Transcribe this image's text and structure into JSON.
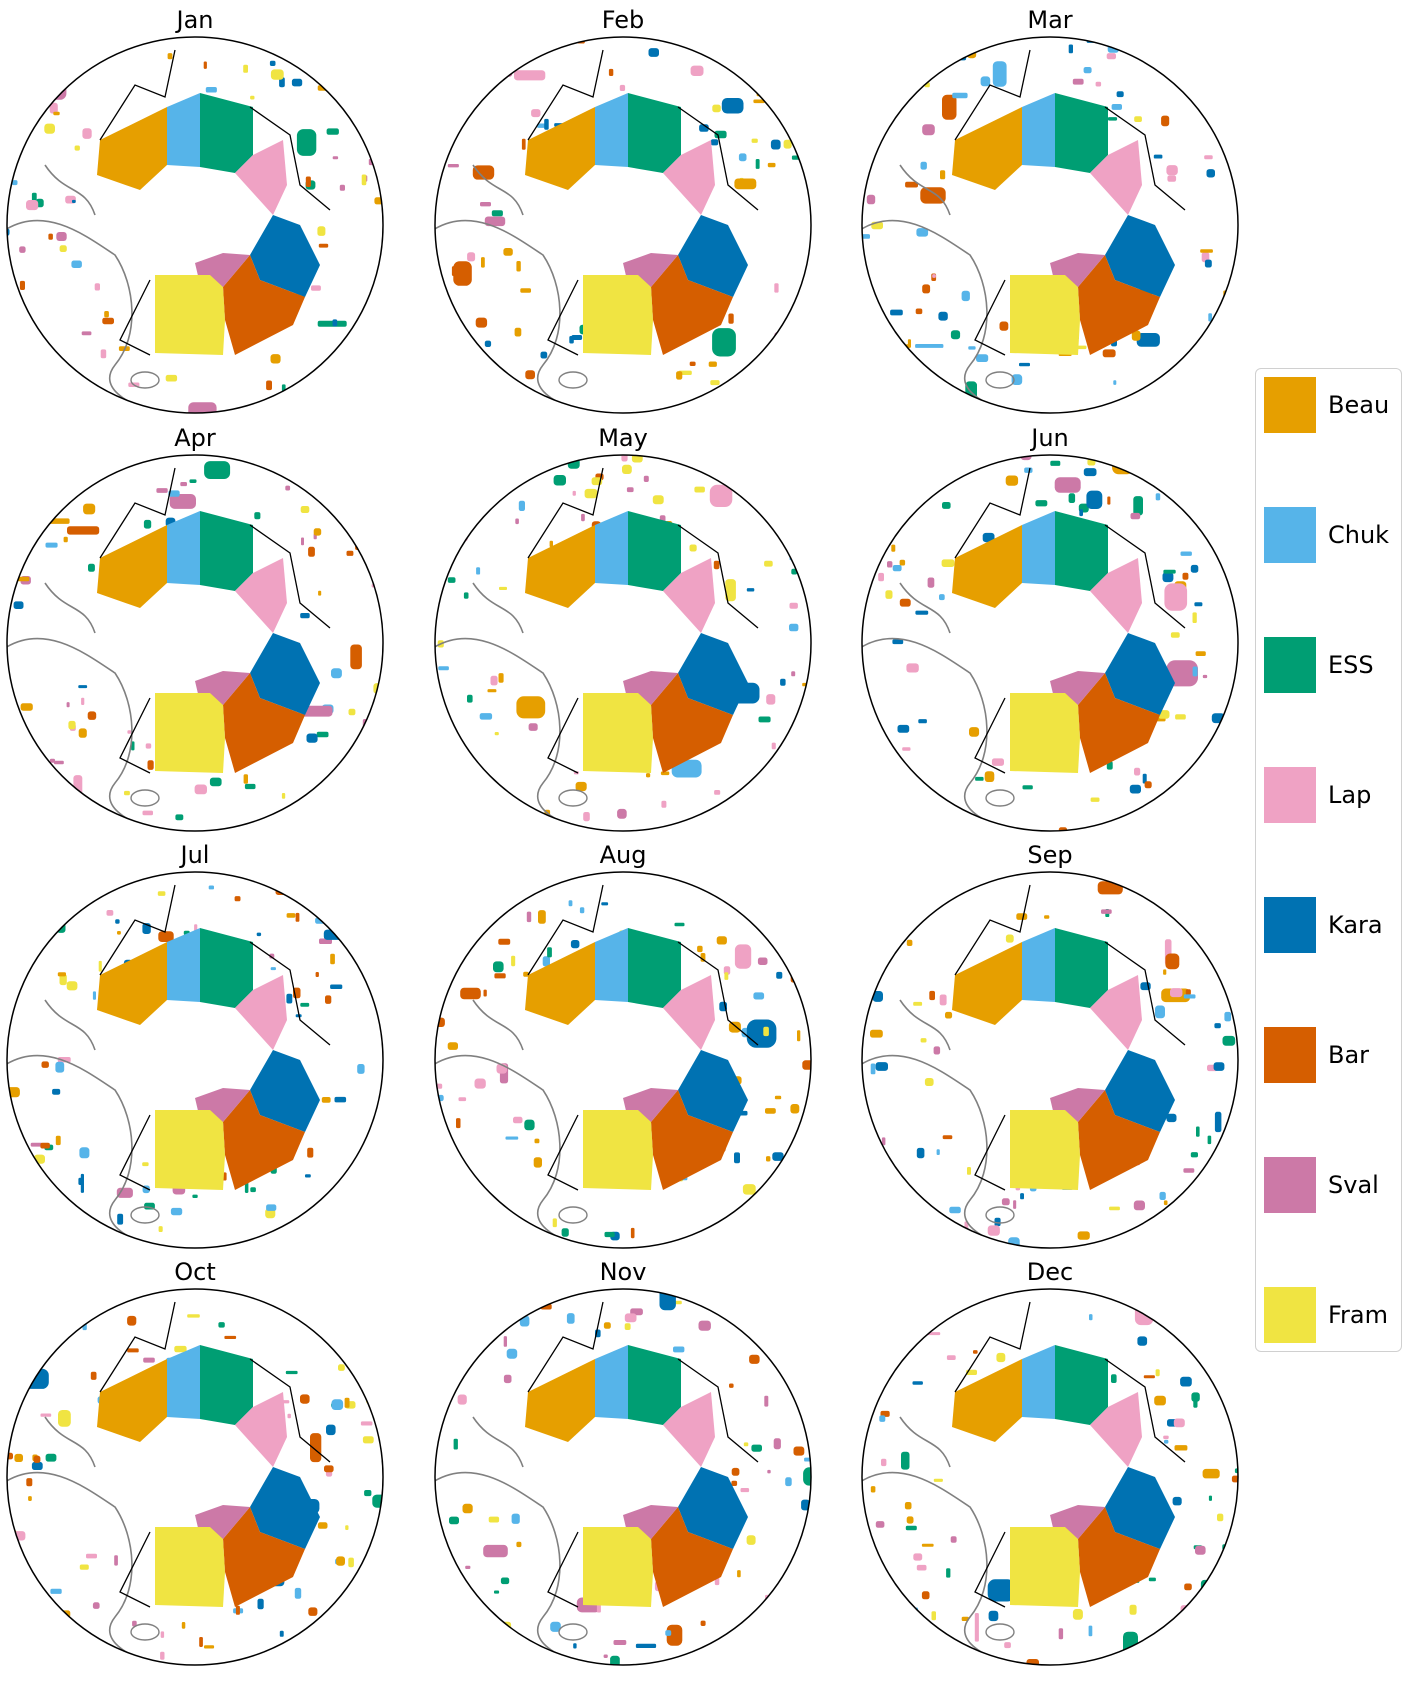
{
  "colors": {
    "Beau": "#E69F00",
    "Chuk": "#56B4E9",
    "ESS": "#009E73",
    "Lap": "#EFA2C4",
    "Kara": "#0072B2",
    "Bar": "#D55E00",
    "Sval": "#CC79A7",
    "Fram": "#F0E442"
  },
  "regions": [
    "Beau",
    "Chuk",
    "ESS",
    "Lap",
    "Kara",
    "Bar",
    "Sval",
    "Fram"
  ],
  "months": [
    "Jan",
    "Feb",
    "Mar",
    "Apr",
    "May",
    "Jun",
    "Jul",
    "Aug",
    "Sep",
    "Oct",
    "Nov",
    "Dec"
  ],
  "legend": {
    "items": [
      {
        "label": "Beau",
        "color": "#E69F00"
      },
      {
        "label": "Chuk",
        "color": "#56B4E9"
      },
      {
        "label": "ESS",
        "color": "#009E73"
      },
      {
        "label": "Lap",
        "color": "#EFA2C4"
      },
      {
        "label": "Kara",
        "color": "#0072B2"
      },
      {
        "label": "Bar",
        "color": "#D55E00"
      },
      {
        "label": "Sval",
        "color": "#CC79A7"
      },
      {
        "label": "Fram",
        "color": "#F0E442"
      }
    ]
  },
  "projection": "north-polar-stereographic",
  "coastline_color": "#808080",
  "boundary_color": "#000000"
}
